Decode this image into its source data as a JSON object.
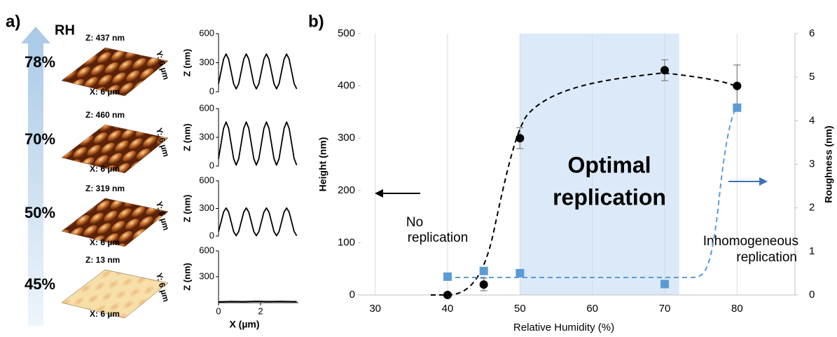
{
  "panel_a": {
    "label": "a)",
    "axis_label": "RH",
    "samples": [
      {
        "rh": "78%",
        "z": "Z: 437 nm",
        "x": "X: 6 µm",
        "y": "Y: 6 µm"
      },
      {
        "rh": "70%",
        "z": "Z: 460 nm",
        "x": "X: 6 µm",
        "y": "Y: 6 µm"
      },
      {
        "rh": "50%",
        "z": "Z: 319 nm",
        "x": "X: 6 µm",
        "y": "Y: 6 µm"
      },
      {
        "rh": "45%",
        "z": "Z: 13 nm",
        "x": "X: 6 µm",
        "y": "Y: 6 µm"
      }
    ]
  },
  "chart_data": [
    {
      "type": "line",
      "ylabel": "Z (nm)",
      "color": "#000000",
      "xlim": [
        0,
        3.8
      ],
      "ylim": [
        0,
        600
      ],
      "yticks": [
        0,
        300,
        600
      ],
      "x": [
        0,
        0.12,
        0.24,
        0.36,
        0.48,
        0.6,
        0.72,
        0.84,
        0.96,
        1.08,
        1.2,
        1.32,
        1.44,
        1.56,
        1.68,
        1.8,
        1.92,
        2.04,
        2.16,
        2.28,
        2.4,
        2.52,
        2.64,
        2.76,
        2.88,
        3.0,
        3.12,
        3.24,
        3.36,
        3.48,
        3.6,
        3.72
      ],
      "values": [
        83,
        210,
        337,
        390,
        337,
        210,
        83,
        30,
        83,
        210,
        337,
        390,
        337,
        210,
        83,
        30,
        83,
        210,
        337,
        390,
        337,
        210,
        83,
        30,
        83,
        210,
        337,
        390,
        337,
        210,
        83,
        30
      ]
    },
    {
      "type": "line",
      "ylabel": "Z (nm)",
      "color": "#000000",
      "xlim": [
        0,
        3.8
      ],
      "ylim": [
        0,
        600
      ],
      "yticks": [
        0,
        300,
        600
      ],
      "x": [
        0,
        0.12,
        0.24,
        0.36,
        0.48,
        0.6,
        0.72,
        0.84,
        0.96,
        1.08,
        1.2,
        1.32,
        1.44,
        1.56,
        1.68,
        1.8,
        1.92,
        2.04,
        2.16,
        2.28,
        2.4,
        2.52,
        2.64,
        2.76,
        2.88,
        3.0,
        3.12,
        3.24,
        3.36,
        3.48,
        3.6,
        3.72
      ],
      "values": [
        76,
        235,
        394,
        460,
        394,
        235,
        76,
        10,
        76,
        235,
        394,
        460,
        394,
        235,
        76,
        10,
        76,
        235,
        394,
        460,
        394,
        235,
        76,
        10,
        76,
        235,
        394,
        460,
        394,
        235,
        76,
        10
      ]
    },
    {
      "type": "line",
      "ylabel": "Z (nm)",
      "color": "#000000",
      "xlim": [
        0,
        3.8
      ],
      "ylim": [
        0,
        600
      ],
      "yticks": [
        0,
        300,
        600
      ],
      "x": [
        0,
        0.12,
        0.24,
        0.36,
        0.48,
        0.6,
        0.72,
        0.84,
        0.96,
        1.08,
        1.2,
        1.32,
        1.44,
        1.56,
        1.68,
        1.8,
        1.92,
        2.04,
        2.16,
        2.28,
        2.4,
        2.52,
        2.64,
        2.76,
        2.88,
        3.0,
        3.12,
        3.24,
        3.36,
        3.48,
        3.6,
        3.72
      ],
      "values": [
        49,
        155,
        261,
        305,
        261,
        155,
        49,
        5,
        49,
        155,
        261,
        305,
        261,
        155,
        49,
        5,
        49,
        155,
        261,
        305,
        261,
        155,
        49,
        5,
        49,
        155,
        261,
        305,
        261,
        155,
        49,
        5
      ]
    },
    {
      "type": "line",
      "ylabel": "Z (nm)",
      "xlabel": "X (µm)",
      "color": "#000000",
      "xlim": [
        0,
        3.8
      ],
      "ylim": [
        0,
        600
      ],
      "yticks": [
        300,
        600
      ],
      "xticks": [
        0,
        2
      ],
      "x": [
        0,
        0.6,
        1.2,
        1.8,
        2.4,
        3.0,
        3.6,
        3.72
      ],
      "values": [
        10,
        14,
        12,
        16,
        13,
        15,
        12,
        14
      ]
    },
    {
      "type": "scatter",
      "title": "b)",
      "xlabel": "Relative Humidity (%)",
      "ylabel": "Height (nm)",
      "y2label": "Roughness (nm)",
      "xlim": [
        28,
        88
      ],
      "xticks": [
        30,
        40,
        50,
        60,
        70,
        80
      ],
      "ylim": [
        0,
        500
      ],
      "yticks": [
        0,
        100,
        200,
        300,
        400,
        500
      ],
      "y2lim": [
        0,
        6
      ],
      "y2ticks": [
        0,
        1,
        2,
        3,
        4,
        5,
        6
      ],
      "grid": true,
      "shaded_range": [
        50,
        72
      ],
      "shaded_color": "#dce9f8",
      "annotations": [
        {
          "lines": [
            "Optimal",
            "replication"
          ]
        },
        {
          "lines": [
            "No",
            "replication"
          ]
        },
        {
          "lines": [
            "Inhomogeneous",
            "replication"
          ]
        }
      ],
      "series": [
        {
          "color": "#000000",
          "marker": "circle",
          "x": [
            40,
            45,
            50,
            70,
            80
          ],
          "values": [
            0,
            20,
            300,
            430,
            400
          ],
          "errors": [
            0,
            12,
            20,
            20,
            40
          ]
        },
        {
          "color": "#5b9bd5",
          "marker": "square",
          "axis": "y2",
          "x": [
            40,
            45,
            50,
            70,
            80
          ],
          "values": [
            0.42,
            0.55,
            0.5,
            0.25,
            4.3
          ]
        }
      ]
    }
  ]
}
